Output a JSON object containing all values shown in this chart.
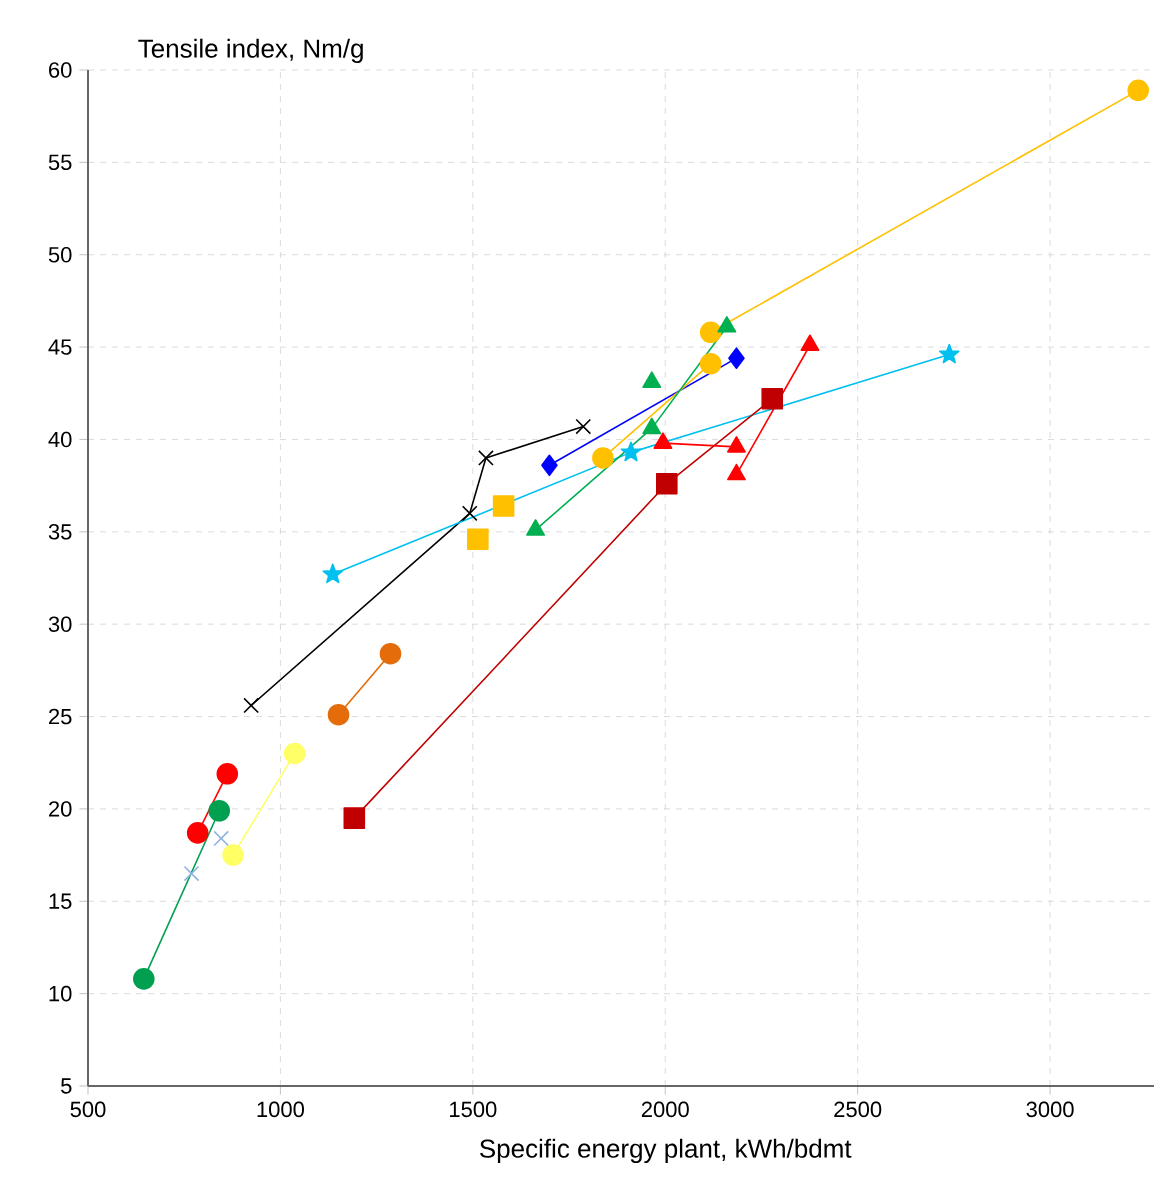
{
  "chart_data": {
    "type": "scatter",
    "xlabel": "Specific energy plant, kWh/bdmt",
    "ylabel": "Tensile index, Nm/g",
    "xlim": [
      500,
      3270
    ],
    "ylim": [
      5,
      60
    ],
    "xticks": [
      500,
      1000,
      1500,
      2000,
      2500,
      3000
    ],
    "yticks": [
      5,
      10,
      15,
      20,
      25,
      30,
      35,
      40,
      45,
      50,
      55,
      60
    ],
    "grid": true,
    "series": [
      {
        "type": "line",
        "color": "#000000",
        "marker": "cross",
        "x": [
          924,
          1492,
          1534,
          1787
        ],
        "values": [
          25.6,
          36.0,
          39.0,
          40.7
        ]
      },
      {
        "type": "line",
        "color": "#00c0f0",
        "marker": "star",
        "x": [
          1136,
          1911,
          2738
        ],
        "values": [
          32.7,
          39.3,
          44.6
        ]
      },
      {
        "type": "line",
        "color": "#0000ff",
        "marker": "diamond",
        "x": [
          1699,
          2185
        ],
        "values": [
          38.6,
          44.4
        ]
      },
      {
        "type": "line",
        "color": "#ffc000",
        "marker": "circle",
        "x": [
          1838,
          2118
        ],
        "values": [
          39.0,
          44.1
        ]
      },
      {
        "type": "line",
        "color": "#ffc000",
        "marker": "circle",
        "x": [
          2118,
          3229
        ],
        "values": [
          45.8,
          58.9
        ]
      },
      {
        "type": "line",
        "color": "#00b050",
        "marker": "triangle",
        "x": [
          1663,
          1965,
          2160
        ],
        "values": [
          35.1,
          40.6,
          46.1
        ]
      },
      {
        "color": "#00b050",
        "marker": "triangle",
        "x": [
          1965
        ],
        "values": [
          43.1
        ]
      },
      {
        "color": "#ffc000",
        "marker": "square",
        "x": [
          1513,
          1580
        ],
        "values": [
          34.6,
          36.4
        ]
      },
      {
        "type": "line",
        "color": "#c00000",
        "marker": "square",
        "x": [
          1192,
          2004,
          2278
        ],
        "values": [
          19.5,
          37.6,
          42.2
        ]
      },
      {
        "type": "line",
        "color": "#ff0000",
        "marker": "triangle",
        "x": [
          1994,
          2185
        ],
        "values": [
          39.8,
          39.6
        ]
      },
      {
        "type": "line",
        "color": "#ff0000",
        "marker": "triangle",
        "x": [
          2185,
          2376
        ],
        "values": [
          38.1,
          45.1
        ]
      },
      {
        "type": "line",
        "color": "#ff0000",
        "marker": "circle",
        "x": [
          785,
          862
        ],
        "values": [
          18.7,
          21.9
        ]
      },
      {
        "type": "line",
        "color": "#e46c0a",
        "marker": "circle",
        "x": [
          1151,
          1286
        ],
        "values": [
          25.1,
          28.4
        ]
      },
      {
        "type": "line",
        "color": "#ffff66",
        "marker": "circle",
        "x": [
          877,
          1037
        ],
        "values": [
          17.5,
          23.0
        ]
      },
      {
        "color": "#8eb4e3",
        "marker": "cross",
        "x": [
          769,
          846
        ],
        "values": [
          16.5,
          18.4
        ]
      },
      {
        "type": "line",
        "color": "#00a050",
        "marker": "circle",
        "x": [
          645,
          841
        ],
        "values": [
          10.8,
          19.9
        ]
      }
    ]
  }
}
